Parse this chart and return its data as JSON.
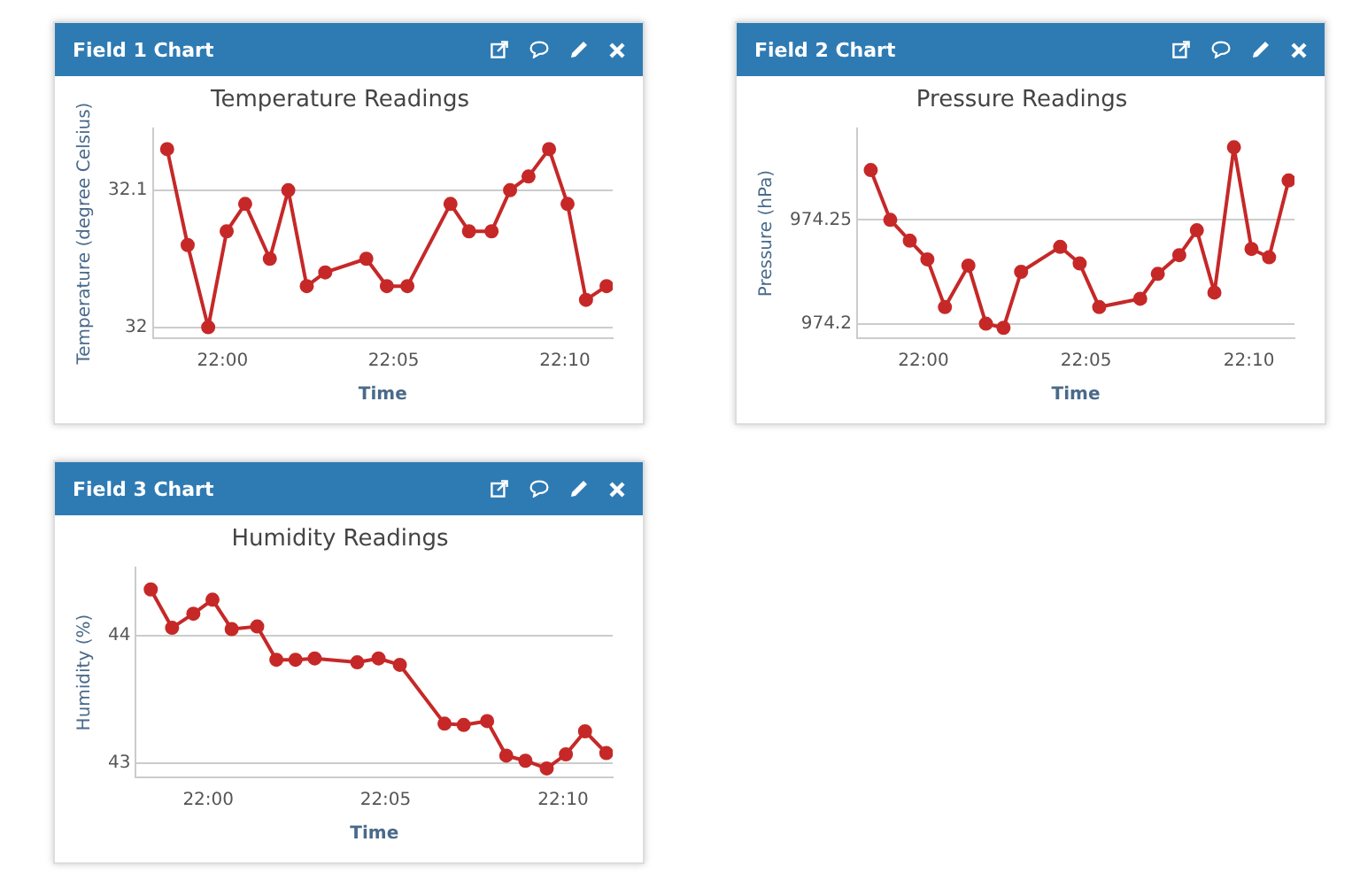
{
  "chart_data": [
    {
      "type": "line",
      "title": "Field 1 Chart",
      "subtitle": "Temperature Readings",
      "xlabel": "Time",
      "ylabel": "Temperature (degree Celsius)",
      "x": [
        21.973,
        21.983,
        21.993,
        22.002,
        22.011,
        22.023,
        22.032,
        22.041,
        22.05,
        22.07,
        22.08,
        22.09,
        22.111,
        22.12,
        22.131,
        22.14,
        22.149,
        22.159,
        22.168,
        22.177,
        22.187
      ],
      "series": [
        {
          "color": "#c62828",
          "values": [
            32.13,
            32.06,
            32.0,
            32.07,
            32.09,
            32.05,
            32.1,
            32.03,
            32.04,
            32.05,
            32.03,
            32.03,
            32.09,
            32.07,
            32.07,
            32.1,
            32.11,
            32.13,
            32.09,
            32.02,
            32.03
          ]
        }
      ],
      "xlim": [
        21.966,
        22.19
      ],
      "xticks": [
        {
          "value": 22,
          "label": "22:00"
        },
        {
          "value": 22.0833,
          "label": "22:05"
        },
        {
          "value": 22.1667,
          "label": "22:10"
        }
      ],
      "ylim": [
        31.992,
        32.145
      ],
      "yticks": [
        32,
        32.1
      ],
      "grid": "y",
      "legend": false,
      "marker": "circle"
    },
    {
      "type": "line",
      "title": "Field 2 Chart",
      "subtitle": "Pressure Readings",
      "xlabel": "Time",
      "ylabel": "Pressure (hPa)",
      "x": [
        21.973,
        21.983,
        21.993,
        22.002,
        22.011,
        22.023,
        22.032,
        22.041,
        22.05,
        22.07,
        22.08,
        22.09,
        22.111,
        22.12,
        22.131,
        22.14,
        22.149,
        22.159,
        22.168,
        22.177,
        22.187
      ],
      "series": [
        {
          "color": "#c62828",
          "values": [
            974.274,
            974.25,
            974.24,
            974.231,
            974.208,
            974.228,
            974.2,
            974.198,
            974.225,
            974.237,
            974.229,
            974.208,
            974.212,
            974.224,
            974.233,
            974.245,
            974.215,
            974.285,
            974.236,
            974.232,
            974.269
          ]
        }
      ],
      "xlim": [
        21.966,
        22.19
      ],
      "xticks": [
        {
          "value": 22,
          "label": "22:00"
        },
        {
          "value": 22.0833,
          "label": "22:05"
        },
        {
          "value": 22.1667,
          "label": "22:10"
        }
      ],
      "ylim": [
        974.193,
        974.294
      ],
      "yticks": [
        974.2,
        974.25
      ],
      "grid": "y",
      "legend": false,
      "marker": "circle"
    },
    {
      "type": "line",
      "title": "Field 3 Chart",
      "subtitle": "Humidity Readings",
      "xlabel": "Time",
      "ylabel": "Humidity (%)",
      "x": [
        21.973,
        21.983,
        21.993,
        22.002,
        22.011,
        22.023,
        22.032,
        22.041,
        22.05,
        22.07,
        22.08,
        22.09,
        22.111,
        22.12,
        22.131,
        22.14,
        22.149,
        22.159,
        22.168,
        22.177,
        22.187
      ],
      "series": [
        {
          "color": "#c62828",
          "values": [
            44.36,
            44.06,
            44.17,
            44.28,
            44.05,
            44.07,
            43.81,
            43.81,
            43.82,
            43.79,
            43.82,
            43.77,
            43.31,
            43.3,
            43.33,
            43.06,
            43.02,
            42.96,
            43.07,
            43.25,
            43.08
          ]
        }
      ],
      "xlim": [
        21.966,
        22.19
      ],
      "xticks": [
        {
          "value": 22,
          "label": "22:00"
        },
        {
          "value": 22.0833,
          "label": "22:05"
        },
        {
          "value": 22.1667,
          "label": "22:10"
        }
      ],
      "ylim": [
        42.89,
        44.53
      ],
      "yticks": [
        43,
        44
      ],
      "grid": "y",
      "legend": false,
      "marker": "circle"
    }
  ]
}
